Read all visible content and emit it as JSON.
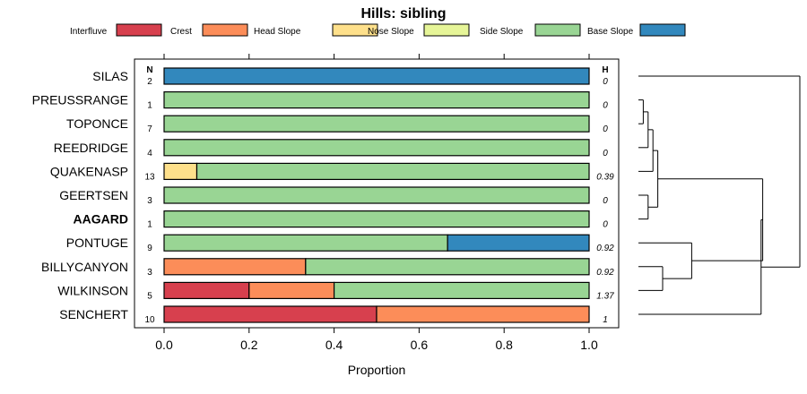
{
  "chart_data": {
    "type": "bar",
    "orientation": "horizontal",
    "stacked": true,
    "title": "Hills: sibling",
    "xlabel": "Proportion",
    "xlim": [
      0,
      1
    ],
    "xticks": [
      "0.0",
      "0.2",
      "0.4",
      "0.6",
      "0.8",
      "1.0"
    ],
    "xtick_values": [
      0,
      0.2,
      0.4,
      0.6,
      0.8,
      1.0
    ],
    "n_header": "N",
    "h_header": "H",
    "legend": [
      {
        "name": "Interfluve",
        "color": "#d7404e"
      },
      {
        "name": "Crest",
        "color": "#fc8d59"
      },
      {
        "name": "Head Slope",
        "color": "#fee08b"
      },
      {
        "name": "Nose Slope",
        "color": "#e6f598"
      },
      {
        "name": "Side Slope",
        "color": "#99d594"
      },
      {
        "name": "Base Slope",
        "color": "#3288bd"
      }
    ],
    "rows": [
      {
        "label": "SILAS",
        "n": "2",
        "h": "0",
        "bold": false,
        "values": [
          0,
          0,
          0,
          0,
          0,
          1
        ]
      },
      {
        "label": "PREUSSRANGE",
        "n": "1",
        "h": "0",
        "bold": false,
        "values": [
          0,
          0,
          0,
          0,
          1,
          0
        ]
      },
      {
        "label": "TOPONCE",
        "n": "7",
        "h": "0",
        "bold": false,
        "values": [
          0,
          0,
          0,
          0,
          1,
          0
        ]
      },
      {
        "label": "REEDRIDGE",
        "n": "4",
        "h": "0",
        "bold": false,
        "values": [
          0,
          0,
          0,
          0,
          1,
          0
        ]
      },
      {
        "label": "QUAKENASP",
        "n": "13",
        "h": "0.39",
        "bold": false,
        "values": [
          0,
          0,
          0.077,
          0,
          0.923,
          0
        ]
      },
      {
        "label": "GEERTSEN",
        "n": "3",
        "h": "0",
        "bold": false,
        "values": [
          0,
          0,
          0,
          0,
          1,
          0
        ]
      },
      {
        "label": "AAGARD",
        "n": "1",
        "h": "0",
        "bold": true,
        "values": [
          0,
          0,
          0,
          0,
          1,
          0
        ]
      },
      {
        "label": "PONTUGE",
        "n": "9",
        "h": "0.92",
        "bold": false,
        "values": [
          0,
          0,
          0,
          0,
          0.667,
          0.333
        ]
      },
      {
        "label": "BILLYCANYON",
        "n": "3",
        "h": "0.92",
        "bold": false,
        "values": [
          0,
          0.333,
          0,
          0,
          0.667,
          0
        ]
      },
      {
        "label": "WILKINSON",
        "n": "5",
        "h": "1.37",
        "bold": false,
        "values": [
          0.2,
          0.2,
          0,
          0,
          0.6,
          0
        ]
      },
      {
        "label": "SENCHERT",
        "n": "10",
        "h": "1",
        "bold": false,
        "values": [
          0.5,
          0.5,
          0,
          0,
          0,
          0
        ]
      }
    ],
    "dendrogram": {
      "leaves": [
        "SILAS",
        "PREUSSRANGE",
        "TOPONCE",
        "REEDRIDGE",
        "QUAKENASP",
        "GEERTSEN",
        "AAGARD",
        "PONTUGE",
        "BILLYCANYON",
        "WILKINSON",
        "SENCHERT"
      ],
      "merges": [
        {
          "left": "PREUSSRANGE",
          "right": "TOPONCE",
          "height": 0.03
        },
        {
          "left": "m0",
          "right": "REEDRIDGE",
          "height": 0.06
        },
        {
          "left": "m1",
          "right": "QUAKENASP",
          "height": 0.09
        },
        {
          "left": "GEERTSEN",
          "right": "AAGARD",
          "height": 0.06
        },
        {
          "left": "m2",
          "right": "m3",
          "height": 0.12
        },
        {
          "left": "BILLYCANYON",
          "right": "WILKINSON",
          "height": 0.15
        },
        {
          "left": "PONTUGE",
          "right": "m5",
          "height": 0.33
        },
        {
          "left": "m4",
          "right": "m6",
          "height": 0.77
        },
        {
          "left": "m7",
          "right": "SENCHERT",
          "height": 0.76
        },
        {
          "left": "SILAS",
          "right": "m8",
          "height": 1.0
        }
      ]
    }
  }
}
